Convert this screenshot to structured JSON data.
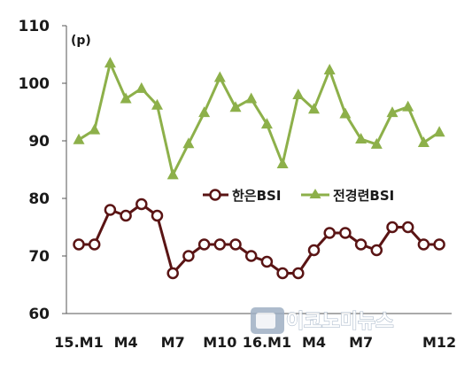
{
  "chart_data": {
    "type": "line",
    "unit_label": "(p)",
    "ylim": [
      60,
      110
    ],
    "yticks": [
      "110",
      "100",
      "90",
      "80",
      "70",
      "60"
    ],
    "x_tick_labels": [
      {
        "index": 0,
        "label": "15.M1"
      },
      {
        "index": 3,
        "label": "M4"
      },
      {
        "index": 6,
        "label": "M7"
      },
      {
        "index": 9,
        "label": "M10"
      },
      {
        "index": 12,
        "label": "16.M1"
      },
      {
        "index": 15,
        "label": "M4"
      },
      {
        "index": 18,
        "label": "M7"
      },
      {
        "index": 23,
        "label": "M12"
      }
    ],
    "grid": false,
    "legend_position": "middle-right",
    "series": [
      {
        "name": "한은BSI",
        "color": "#5a1414",
        "marker": "circle",
        "values": [
          72,
          72,
          78,
          77,
          79,
          77,
          67,
          70,
          72,
          72,
          72,
          70,
          69,
          67,
          67,
          71,
          74,
          74,
          72,
          71,
          75,
          75,
          72,
          72
        ]
      },
      {
        "name": "전경련BSI",
        "color": "#8db04a",
        "marker": "triangle",
        "values": [
          90.2,
          91.9,
          103.5,
          97.3,
          99.1,
          96.2,
          84.1,
          89.5,
          94.9,
          101.0,
          95.8,
          97.3,
          92.9,
          86.0,
          98.0,
          95.5,
          102.3,
          94.7,
          90.3,
          89.4,
          94.9,
          95.9,
          89.7,
          91.5
        ]
      }
    ]
  },
  "watermark": {
    "text": "이코노미뉴스",
    "logo_lettering": "E economy"
  }
}
